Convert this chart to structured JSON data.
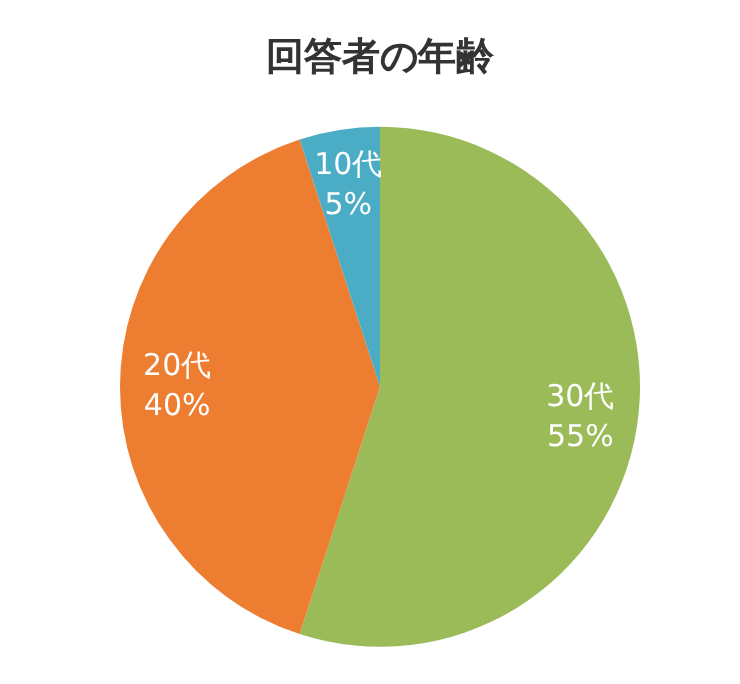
{
  "chart_data": {
    "type": "pie",
    "title": "回答者の年齢",
    "categories": [
      "30代",
      "20代",
      "10代"
    ],
    "values": [
      55,
      40,
      5
    ],
    "colors": [
      "#9bbb59",
      "#ed7d31",
      "#4bacc6"
    ],
    "value_labels": [
      "55%",
      "40%",
      "5%"
    ],
    "legend": false
  }
}
